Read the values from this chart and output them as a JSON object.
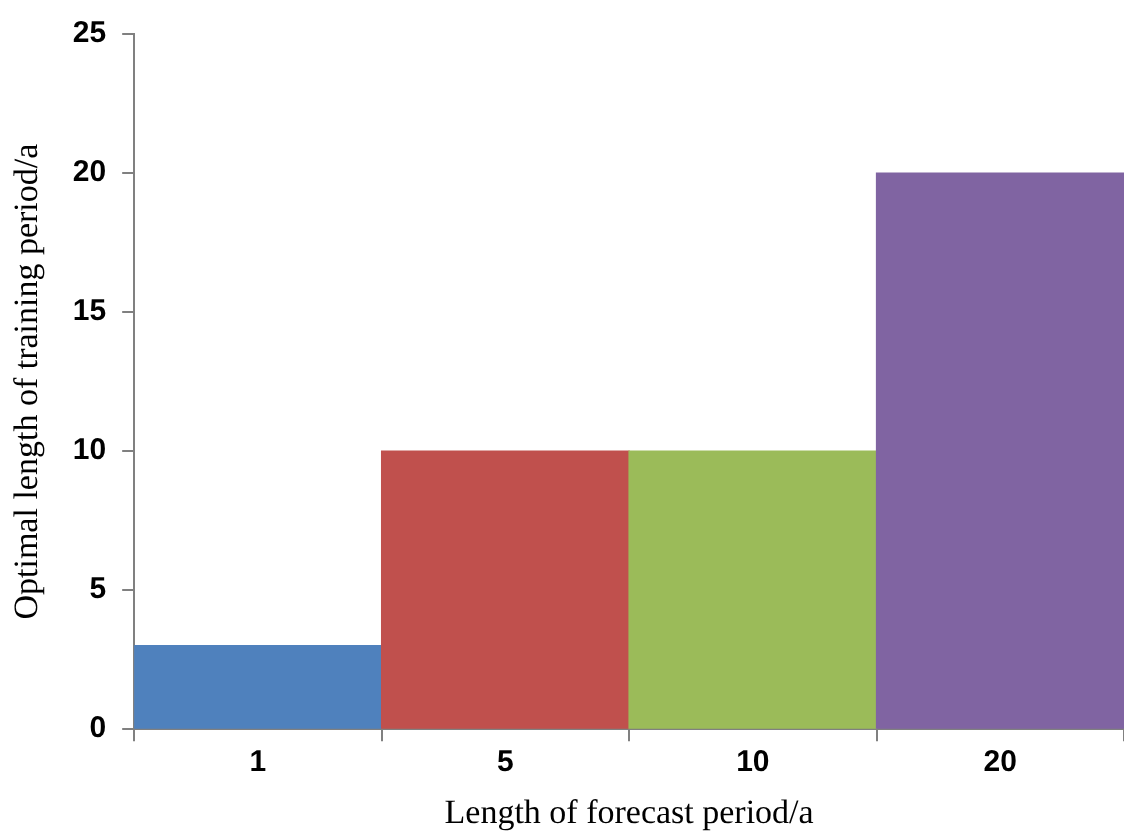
{
  "chart_data": {
    "type": "bar",
    "xlabel": "Length of forecast period/a",
    "ylabel": "Optimal length of training period/a",
    "categories": [
      "1",
      "5",
      "10",
      "20"
    ],
    "values": [
      3,
      10,
      10,
      20
    ],
    "colors": [
      "#4f81bd",
      "#c0504d",
      "#9bbb59",
      "#8064a2"
    ],
    "ylim": [
      0,
      25
    ],
    "yticks": [
      0,
      5,
      10,
      15,
      20,
      25
    ],
    "legend": false
  }
}
